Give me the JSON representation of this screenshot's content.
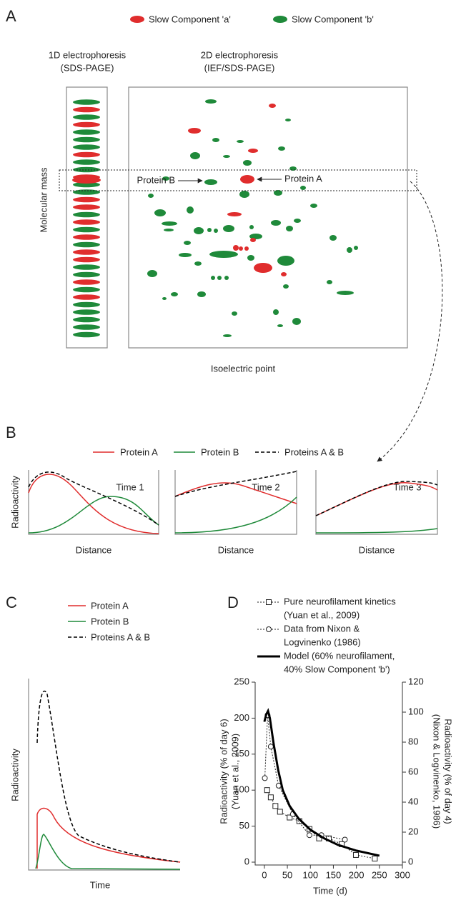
{
  "panel_a": {
    "label": "A",
    "legend": [
      "Slow Component 'a'",
      "Slow Component 'b'"
    ],
    "gel_1d_title": [
      "1D electrophoresis",
      "(SDS-PAGE)"
    ],
    "gel_2d_title": [
      "2D electrophoresis",
      "(IEF/SDS-PAGE)"
    ],
    "y_label": "Molecular mass",
    "x_label": "Isoelectric point",
    "protein_b": "Protein B",
    "protein_a": "Protein A"
  },
  "panel_b": {
    "label": "B",
    "legend": [
      "Protein A",
      "Protein B",
      "Proteins A & B"
    ],
    "y_label": "Radioactivity",
    "x_label": "Distance",
    "times": [
      "Time 1",
      "Time 2",
      "Time 3"
    ]
  },
  "panel_c": {
    "label": "C",
    "legend": [
      "Protein A",
      "Protein B",
      "Proteins A & B"
    ],
    "y_label": "Radioactivity",
    "x_label": "Time"
  },
  "chart_data": {
    "type": "line",
    "label": "D",
    "xlabel": "Time (d)",
    "ylabel": [
      "Radioactivity (% of day 6)",
      "(Yuan et al., 2009)"
    ],
    "y2label": [
      "Radioactivity (% of day 4)",
      "(Nixon & Logvinenko, 1986)"
    ],
    "xlim": [
      -20,
      300
    ],
    "xticks": [
      0,
      50,
      100,
      150,
      200,
      250,
      300
    ],
    "ylim": [
      0,
      250
    ],
    "yticks": [
      0,
      50,
      100,
      150,
      200,
      250
    ],
    "y2lim": [
      0,
      120
    ],
    "y2ticks": [
      0,
      20,
      40,
      60,
      80,
      100,
      120
    ],
    "series": [
      {
        "name": [
          "Pure neurofilament kinetics",
          "(Yuan et al., 2009)"
        ],
        "color": "#222",
        "marker": "square",
        "dash": "dotted",
        "width": 1,
        "x": [
          6,
          14,
          24,
          34,
          55,
          76,
          98,
          119,
          140,
          168,
          199,
          240
        ],
        "values": [
          100,
          90,
          78,
          70,
          62,
          57,
          46,
          33,
          33,
          25,
          10,
          5
        ]
      },
      {
        "name": [
          "Data from Nixon &",
          "Logvinenko (1986)"
        ],
        "color": "#222",
        "marker": "circle",
        "dash": "dotted",
        "width": 1,
        "axis": "y2",
        "x": [
          1,
          7,
          14,
          31,
          62,
          98,
          124,
          175
        ],
        "values": [
          56,
          98,
          77,
          51,
          32,
          18,
          18,
          15
        ]
      },
      {
        "name": [
          "Model (60% neurofilament,",
          "40% Slow Component 'b')"
        ],
        "color": "#000",
        "marker": "none",
        "dash": "solid",
        "width": 3,
        "x": [
          0,
          4,
          8,
          12,
          20,
          30,
          40,
          55,
          75,
          100,
          130,
          160,
          200,
          250
        ],
        "values": [
          195,
          205,
          210,
          200,
          165,
          128,
          100,
          78,
          60,
          45,
          33,
          24,
          16,
          9
        ]
      }
    ]
  }
}
